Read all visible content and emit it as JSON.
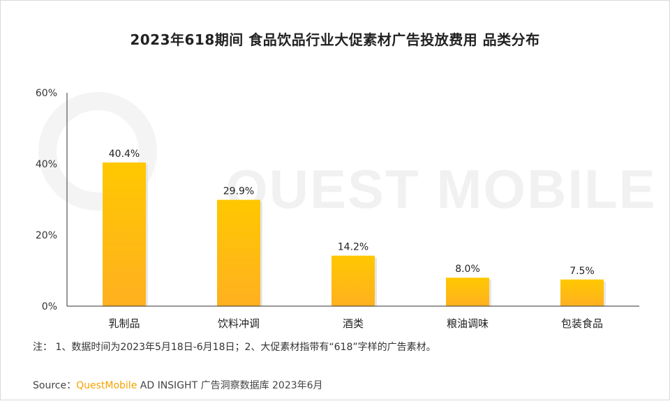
{
  "chart_data": {
    "type": "bar",
    "title": "2023年618期间 食品饮品行业大促素材广告投放费用 品类分布",
    "categories": [
      "乳制品",
      "饮料冲调",
      "酒类",
      "粮油调味",
      "包装食品"
    ],
    "values": [
      40.4,
      29.9,
      14.2,
      8.0,
      7.5
    ],
    "value_labels": [
      "40.4%",
      "29.9%",
      "14.2%",
      "8.0%",
      "7.5%"
    ],
    "y_ticks": [
      0,
      20,
      40,
      60
    ],
    "y_tick_labels": [
      "0%",
      "20%",
      "40%",
      "60%"
    ],
    "ylim": [
      0,
      60
    ],
    "xlabel": "",
    "ylabel": "",
    "grid": false,
    "bar_color_top": "#FFC800",
    "bar_color_bottom": "#FFB020"
  },
  "watermark": "QUEST MOBILE",
  "note": "注：  1、数据时间为2023年5月18日-6月18日；2、大促素材指带有“618”字样的广告素材。",
  "source": {
    "prefix": "Source：",
    "brand": "QuestMobile",
    "suffix": " AD INSIGHT 广告洞察数据库  2023年6月"
  }
}
